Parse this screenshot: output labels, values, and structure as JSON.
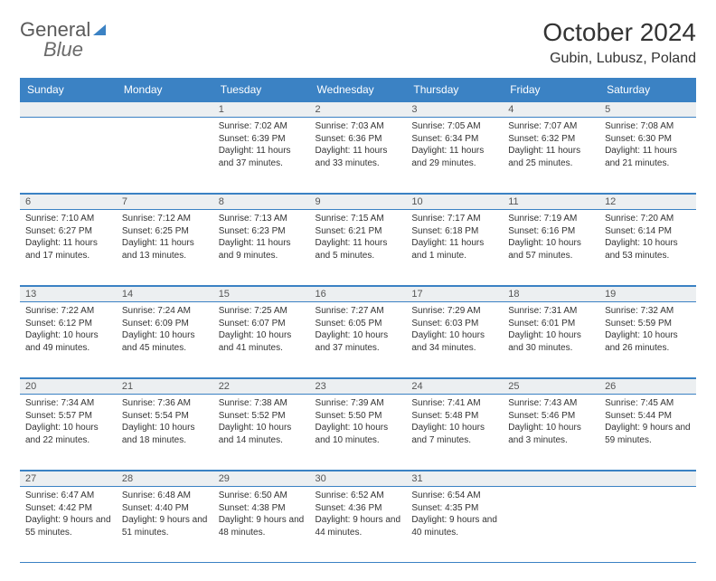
{
  "logo": {
    "part1": "General",
    "part2": "Blue"
  },
  "title": "October 2024",
  "location": "Gubin, Lubusz, Poland",
  "dayHeaders": [
    "Sunday",
    "Monday",
    "Tuesday",
    "Wednesday",
    "Thursday",
    "Friday",
    "Saturday"
  ],
  "colors": {
    "header_bg": "#3b82c4",
    "header_text": "#ffffff",
    "daynum_bg": "#eceff1",
    "border": "#3b82c4",
    "text": "#333333"
  },
  "weeks": [
    [
      null,
      null,
      {
        "n": "1",
        "sr": "Sunrise: 7:02 AM",
        "ss": "Sunset: 6:39 PM",
        "dl": "Daylight: 11 hours and 37 minutes."
      },
      {
        "n": "2",
        "sr": "Sunrise: 7:03 AM",
        "ss": "Sunset: 6:36 PM",
        "dl": "Daylight: 11 hours and 33 minutes."
      },
      {
        "n": "3",
        "sr": "Sunrise: 7:05 AM",
        "ss": "Sunset: 6:34 PM",
        "dl": "Daylight: 11 hours and 29 minutes."
      },
      {
        "n": "4",
        "sr": "Sunrise: 7:07 AM",
        "ss": "Sunset: 6:32 PM",
        "dl": "Daylight: 11 hours and 25 minutes."
      },
      {
        "n": "5",
        "sr": "Sunrise: 7:08 AM",
        "ss": "Sunset: 6:30 PM",
        "dl": "Daylight: 11 hours and 21 minutes."
      }
    ],
    [
      {
        "n": "6",
        "sr": "Sunrise: 7:10 AM",
        "ss": "Sunset: 6:27 PM",
        "dl": "Daylight: 11 hours and 17 minutes."
      },
      {
        "n": "7",
        "sr": "Sunrise: 7:12 AM",
        "ss": "Sunset: 6:25 PM",
        "dl": "Daylight: 11 hours and 13 minutes."
      },
      {
        "n": "8",
        "sr": "Sunrise: 7:13 AM",
        "ss": "Sunset: 6:23 PM",
        "dl": "Daylight: 11 hours and 9 minutes."
      },
      {
        "n": "9",
        "sr": "Sunrise: 7:15 AM",
        "ss": "Sunset: 6:21 PM",
        "dl": "Daylight: 11 hours and 5 minutes."
      },
      {
        "n": "10",
        "sr": "Sunrise: 7:17 AM",
        "ss": "Sunset: 6:18 PM",
        "dl": "Daylight: 11 hours and 1 minute."
      },
      {
        "n": "11",
        "sr": "Sunrise: 7:19 AM",
        "ss": "Sunset: 6:16 PM",
        "dl": "Daylight: 10 hours and 57 minutes."
      },
      {
        "n": "12",
        "sr": "Sunrise: 7:20 AM",
        "ss": "Sunset: 6:14 PM",
        "dl": "Daylight: 10 hours and 53 minutes."
      }
    ],
    [
      {
        "n": "13",
        "sr": "Sunrise: 7:22 AM",
        "ss": "Sunset: 6:12 PM",
        "dl": "Daylight: 10 hours and 49 minutes."
      },
      {
        "n": "14",
        "sr": "Sunrise: 7:24 AM",
        "ss": "Sunset: 6:09 PM",
        "dl": "Daylight: 10 hours and 45 minutes."
      },
      {
        "n": "15",
        "sr": "Sunrise: 7:25 AM",
        "ss": "Sunset: 6:07 PM",
        "dl": "Daylight: 10 hours and 41 minutes."
      },
      {
        "n": "16",
        "sr": "Sunrise: 7:27 AM",
        "ss": "Sunset: 6:05 PM",
        "dl": "Daylight: 10 hours and 37 minutes."
      },
      {
        "n": "17",
        "sr": "Sunrise: 7:29 AM",
        "ss": "Sunset: 6:03 PM",
        "dl": "Daylight: 10 hours and 34 minutes."
      },
      {
        "n": "18",
        "sr": "Sunrise: 7:31 AM",
        "ss": "Sunset: 6:01 PM",
        "dl": "Daylight: 10 hours and 30 minutes."
      },
      {
        "n": "19",
        "sr": "Sunrise: 7:32 AM",
        "ss": "Sunset: 5:59 PM",
        "dl": "Daylight: 10 hours and 26 minutes."
      }
    ],
    [
      {
        "n": "20",
        "sr": "Sunrise: 7:34 AM",
        "ss": "Sunset: 5:57 PM",
        "dl": "Daylight: 10 hours and 22 minutes."
      },
      {
        "n": "21",
        "sr": "Sunrise: 7:36 AM",
        "ss": "Sunset: 5:54 PM",
        "dl": "Daylight: 10 hours and 18 minutes."
      },
      {
        "n": "22",
        "sr": "Sunrise: 7:38 AM",
        "ss": "Sunset: 5:52 PM",
        "dl": "Daylight: 10 hours and 14 minutes."
      },
      {
        "n": "23",
        "sr": "Sunrise: 7:39 AM",
        "ss": "Sunset: 5:50 PM",
        "dl": "Daylight: 10 hours and 10 minutes."
      },
      {
        "n": "24",
        "sr": "Sunrise: 7:41 AM",
        "ss": "Sunset: 5:48 PM",
        "dl": "Daylight: 10 hours and 7 minutes."
      },
      {
        "n": "25",
        "sr": "Sunrise: 7:43 AM",
        "ss": "Sunset: 5:46 PM",
        "dl": "Daylight: 10 hours and 3 minutes."
      },
      {
        "n": "26",
        "sr": "Sunrise: 7:45 AM",
        "ss": "Sunset: 5:44 PM",
        "dl": "Daylight: 9 hours and 59 minutes."
      }
    ],
    [
      {
        "n": "27",
        "sr": "Sunrise: 6:47 AM",
        "ss": "Sunset: 4:42 PM",
        "dl": "Daylight: 9 hours and 55 minutes."
      },
      {
        "n": "28",
        "sr": "Sunrise: 6:48 AM",
        "ss": "Sunset: 4:40 PM",
        "dl": "Daylight: 9 hours and 51 minutes."
      },
      {
        "n": "29",
        "sr": "Sunrise: 6:50 AM",
        "ss": "Sunset: 4:38 PM",
        "dl": "Daylight: 9 hours and 48 minutes."
      },
      {
        "n": "30",
        "sr": "Sunrise: 6:52 AM",
        "ss": "Sunset: 4:36 PM",
        "dl": "Daylight: 9 hours and 44 minutes."
      },
      {
        "n": "31",
        "sr": "Sunrise: 6:54 AM",
        "ss": "Sunset: 4:35 PM",
        "dl": "Daylight: 9 hours and 40 minutes."
      },
      null,
      null
    ]
  ]
}
